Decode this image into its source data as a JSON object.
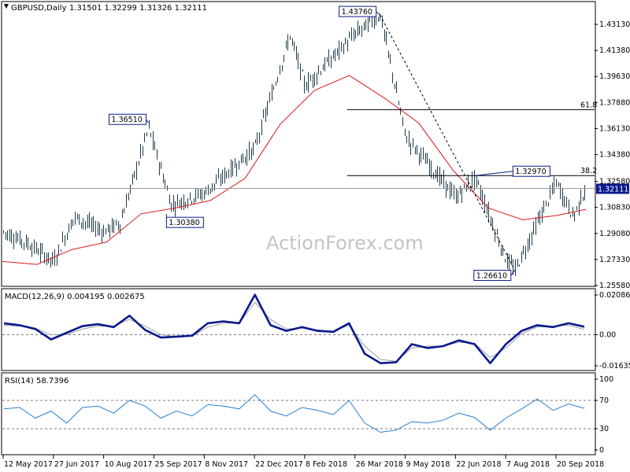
{
  "header": {
    "symbol_label": "GBPUSD,Daily",
    "ohlc": "1.31501 1.32299 1.31326 1.32111"
  },
  "watermark": "ActionForex.com",
  "colors": {
    "candle": "#1f3b4a",
    "ma": "#d7191c",
    "macd": "#0b1a8c",
    "signal": "#a0a0a0",
    "rsi": "#2a7fd4",
    "fib": "#000000",
    "price_box": "#0b1a8c",
    "grid": "#b0b0b0"
  },
  "chart_data": [
    {
      "type": "candlestick",
      "title": "GBPUSD,Daily",
      "x_tick_labels": [
        "12 May 2017",
        "27 Jun 2017",
        "10 Aug 2017",
        "25 Sep 2017",
        "8 Nov 2017",
        "22 Dec 2017",
        "8 Feb 2018",
        "26 Mar 2018",
        "9 May 2018",
        "22 Jun 2018",
        "7 Aug 2018",
        "20 Sep 2018"
      ],
      "y_tick_labels": [
        "1.43130",
        "1.41380",
        "1.39630",
        "1.37880",
        "1.36130",
        "1.34380",
        "1.32580",
        "1.30830",
        "1.29080",
        "1.27330",
        "1.25580"
      ],
      "ylim": [
        1.2558,
        1.4413
      ],
      "current_price": "1.32111",
      "close_path": [
        {
          "x": "12 May 2017",
          "y": 1.292
        },
        {
          "x": "1 Jun 2017",
          "y": 1.285
        },
        {
          "x": "27 Jun 2017",
          "y": 1.272
        },
        {
          "x": "15 Jul 2017",
          "y": 1.302
        },
        {
          "x": "10 Aug 2017",
          "y": 1.292
        },
        {
          "x": "25 Aug 2017",
          "y": 1.298
        },
        {
          "x": "20 Sep 2017",
          "y": 1.362
        },
        {
          "x": "10 Oct 2017",
          "y": 1.31
        },
        {
          "x": "8 Nov 2017",
          "y": 1.318
        },
        {
          "x": "22 Dec 2017",
          "y": 1.348
        },
        {
          "x": "25 Jan 2018",
          "y": 1.424
        },
        {
          "x": "8 Feb 2018",
          "y": 1.39
        },
        {
          "x": "26 Mar 2018",
          "y": 1.425
        },
        {
          "x": "17 Apr 2018",
          "y": 1.4376
        },
        {
          "x": "9 May 2018",
          "y": 1.356
        },
        {
          "x": "22 Jun 2018",
          "y": 1.315
        },
        {
          "x": "10 Jul 2018",
          "y": 1.328
        },
        {
          "x": "7 Aug 2018",
          "y": 1.273
        },
        {
          "x": "15 Aug 2018",
          "y": 1.2661
        },
        {
          "x": "20 Sep 2018",
          "y": 1.325
        },
        {
          "x": "5 Oct 2018",
          "y": 1.302
        },
        {
          "x": "last",
          "y": 1.3211
        }
      ],
      "series": [
        {
          "name": "moving-average",
          "values": [
            1.272,
            1.27,
            1.28,
            1.285,
            1.304,
            1.308,
            1.313,
            1.328,
            1.364,
            1.387,
            1.397,
            1.382,
            1.365,
            1.333,
            1.308,
            1.3,
            1.303,
            1.307
          ]
        }
      ],
      "annotations": [
        {
          "text": "1.43760",
          "x": "17 Apr 2018",
          "y": 1.4376,
          "kind": "swing-high"
        },
        {
          "text": "1.36510",
          "x": "20 Sep 2017",
          "y": 1.3651,
          "kind": "swing-high"
        },
        {
          "text": "1.30380",
          "x": "6 Oct 2017",
          "y": 1.3038,
          "kind": "swing-low"
        },
        {
          "text": "1.32970",
          "x": "10 Jul 2018",
          "y": 1.3297,
          "kind": "swing-high"
        },
        {
          "text": "1.26610",
          "x": "15 Aug 2018",
          "y": 1.2661,
          "kind": "swing-low"
        }
      ],
      "fibonacci": [
        {
          "text": "61.8",
          "y": 1.374
        },
        {
          "text": "38.2",
          "y": 1.3297
        }
      ],
      "trendline": {
        "style": "dashed",
        "from": {
          "x": "17 Apr 2018",
          "y": 1.4376
        },
        "to": {
          "x": "15 Aug 2018",
          "y": 1.2661
        }
      }
    },
    {
      "type": "line",
      "title": "MACD(12,26,9) 0.004195 0.002675",
      "y_tick_labels": [
        "0.020861",
        "0.00",
        "-0.016357"
      ],
      "ylim": [
        -0.0185,
        0.0225
      ],
      "zero_line": true,
      "series": [
        {
          "name": "macd",
          "values": [
            0.006,
            0.005,
            0.003,
            -0.0025,
            0.001,
            0.0045,
            0.0055,
            0.004,
            0.01,
            0.0025,
            -0.0015,
            -0.001,
            -0.0005,
            0.006,
            0.007,
            0.006,
            0.021,
            0.005,
            0.002,
            0.004,
            0.002,
            0.0015,
            0.006,
            -0.01,
            -0.015,
            -0.0145,
            -0.005,
            -0.007,
            -0.006,
            -0.003,
            -0.005,
            -0.015,
            -0.005,
            0.002,
            0.005,
            0.004,
            0.006,
            0.0042
          ]
        },
        {
          "name": "signal",
          "values": [
            0.005,
            0.0045,
            0.0035,
            0.0,
            0.0,
            0.003,
            0.0045,
            0.0045,
            0.008,
            0.0045,
            0.0,
            -0.001,
            -0.0008,
            0.004,
            0.006,
            0.006,
            0.017,
            0.008,
            0.003,
            0.0035,
            0.0025,
            0.0018,
            0.005,
            -0.006,
            -0.013,
            -0.014,
            -0.007,
            -0.006,
            -0.006,
            -0.004,
            -0.0045,
            -0.012,
            -0.007,
            0.0005,
            0.004,
            0.0045,
            0.005,
            0.0027
          ]
        }
      ]
    },
    {
      "type": "line",
      "title": "RSI(14) 58.7396",
      "y_tick_labels": [
        "100",
        "70",
        "30",
        "0"
      ],
      "ylim": [
        0,
        100
      ],
      "levels": [
        70,
        30
      ],
      "series": [
        {
          "name": "rsi",
          "values": [
            58,
            60,
            45,
            55,
            38,
            60,
            62,
            52,
            70,
            62,
            45,
            55,
            48,
            64,
            62,
            58,
            78,
            55,
            48,
            60,
            56,
            50,
            70,
            38,
            25,
            28,
            40,
            38,
            42,
            52,
            46,
            28,
            45,
            58,
            72,
            56,
            65,
            58.74
          ]
        }
      ]
    }
  ]
}
